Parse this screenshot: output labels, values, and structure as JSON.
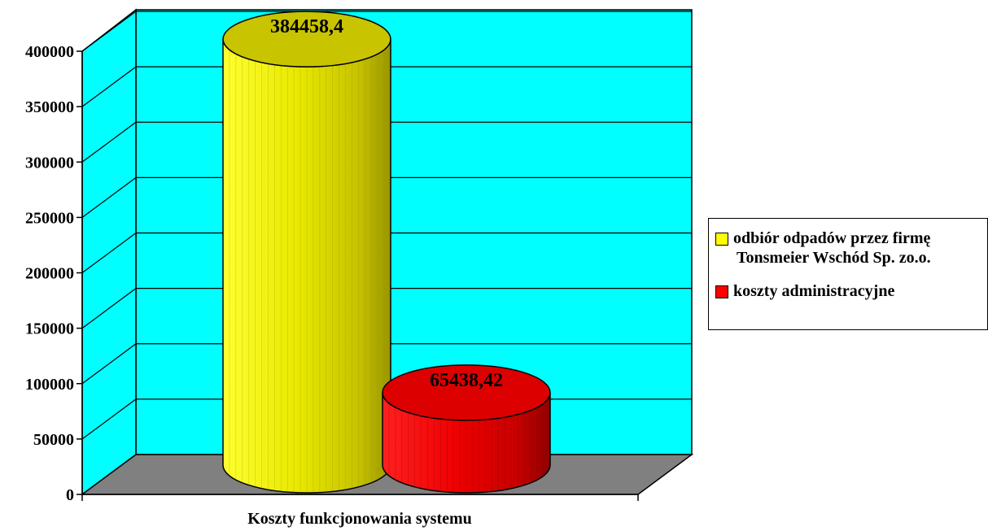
{
  "chart_data": {
    "type": "bar",
    "style": "3d-cylinder",
    "categories": [
      "Koszty funkcjonowania systemu"
    ],
    "series": [
      {
        "name": "odbiór odpadów przez firmę Tonsmeier Wschód Sp. zo.o.",
        "name_line1": "odbiór odpadów przez firmę",
        "name_line2": "Tonsmeier Wschód Sp. zo.o.",
        "values": [
          384458.4
        ],
        "label": "384458,4",
        "color": "#ffff00"
      },
      {
        "name": "koszty administracyjne",
        "values": [
          65438.42
        ],
        "label": "65438,42",
        "color": "#ff0000"
      }
    ],
    "title": "",
    "xlabel": "Koszty funkcjonowania systemu",
    "ylabel": "",
    "ylim": [
      0,
      400000
    ],
    "yticks": [
      "0",
      "50000",
      "100000",
      "150000",
      "200000",
      "250000",
      "300000",
      "350000",
      "400000"
    ],
    "grid": true,
    "legend": "right",
    "wall_color": "#00ffff",
    "floor_color": "#808080"
  }
}
